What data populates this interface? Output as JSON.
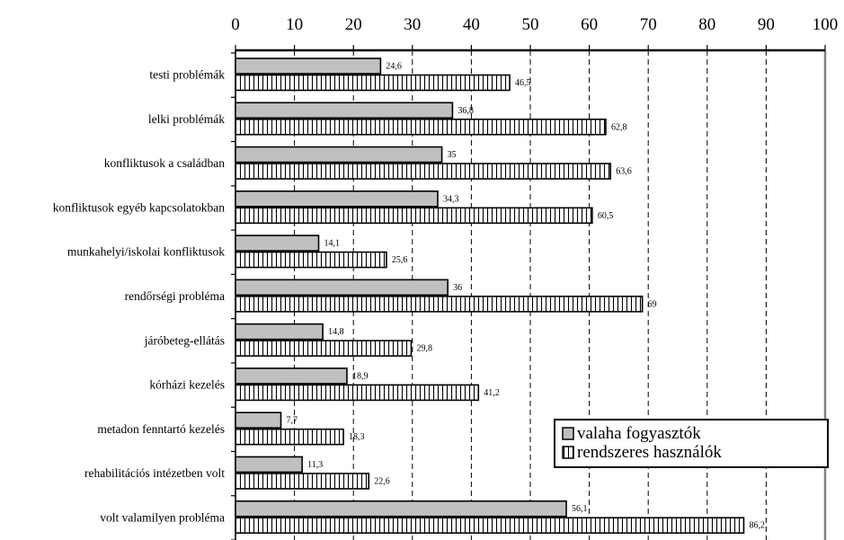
{
  "chart_data": {
    "type": "bar",
    "orientation": "horizontal",
    "categories": [
      "testi problémák",
      "lelki problémák",
      "konfliktusok a családban",
      "konfliktusok egyéb kapcsolatokban",
      "munkahelyi/iskolai konfliktusok",
      "rendőrségi probléma",
      "járóbeteg-ellátás",
      "kórházi kezelés",
      "metadon fenntartó kezelés",
      "rehabilitációs intézetben volt",
      "volt valamilyen probléma"
    ],
    "series": [
      {
        "name": "valaha fogyasztók",
        "values": [
          24.6,
          36.8,
          35,
          34.3,
          14.1,
          36,
          14.8,
          18.9,
          7.7,
          11.3,
          56.1
        ],
        "labels": [
          "24,6",
          "36,8",
          "35",
          "34,3",
          "14,1",
          "36",
          "14,8",
          "18,9",
          "7,7",
          "11,3",
          "56,1"
        ],
        "fill": "#c0c0c0"
      },
      {
        "name": "rendszeres használók",
        "values": [
          46.5,
          62.8,
          63.6,
          60.5,
          25.6,
          69,
          29.8,
          41.2,
          18.3,
          22.6,
          86.2
        ],
        "labels": [
          "46,5",
          "62,8",
          "63,6",
          "60,5",
          "25,6",
          "69",
          "29,8",
          "41,2",
          "18,3",
          "22,6",
          "86,2"
        ],
        "fill": "vertical-stripes"
      }
    ],
    "xlim": [
      0,
      100
    ],
    "xticks": [
      "0",
      "10",
      "20",
      "30",
      "40",
      "50",
      "60",
      "70",
      "80",
      "90",
      "100"
    ],
    "x_axis_position": "top",
    "grid": "vertical dashed",
    "legend_position": "bottom-right",
    "title": "",
    "xlabel": "",
    "ylabel": ""
  }
}
